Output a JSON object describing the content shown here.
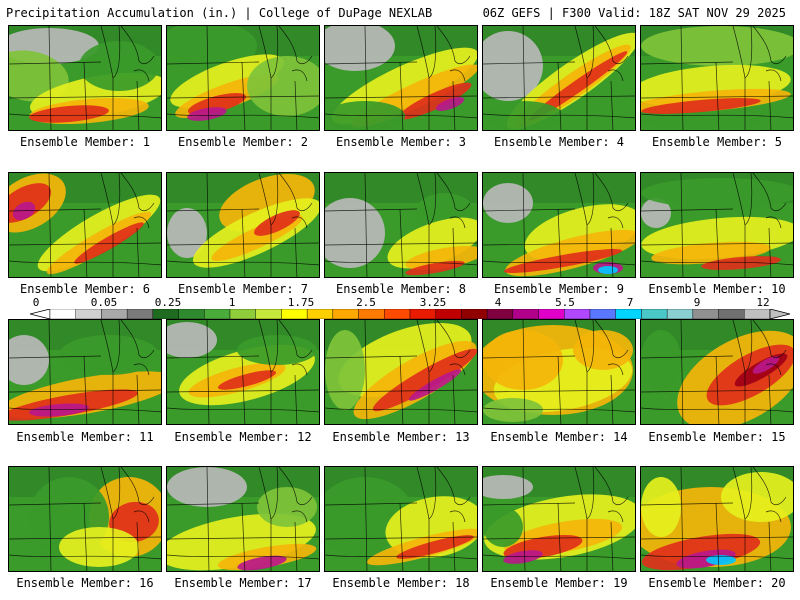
{
  "header": {
    "title": "Precipitation Accumulation (in.) | College of DuPage NEXLAB",
    "valid": "06Z GEFS | F300 Valid: 18Z SAT NOV 29 2025"
  },
  "legend": {
    "labels": [
      "0",
      "0.05",
      "0.25",
      "1",
      "1.75",
      "2.5",
      "3.25",
      "4",
      "5.5",
      "7",
      "9",
      "12"
    ],
    "colors": [
      "#ffffff",
      "#d0d0d0",
      "#a8a8a8",
      "#7a7a7a",
      "#1f6b1f",
      "#2f8a2f",
      "#4aab3a",
      "#8fcd3a",
      "#c6e83a",
      "#ffff00",
      "#ffd000",
      "#ffa800",
      "#ff7a00",
      "#ff4a00",
      "#e81a00",
      "#c00000",
      "#900000",
      "#800040",
      "#b0008a",
      "#e000c8",
      "#b048ff",
      "#5a78ff",
      "#00d4ff",
      "#4ac8c8",
      "#8ad0d0",
      "#909090",
      "#707070",
      "#c0c0c0"
    ]
  },
  "members": [
    {
      "label": "Ensemble Member: 1"
    },
    {
      "label": "Ensemble Member: 2"
    },
    {
      "label": "Ensemble Member: 3"
    },
    {
      "label": "Ensemble Member: 4"
    },
    {
      "label": "Ensemble Member: 5"
    },
    {
      "label": "Ensemble Member: 6"
    },
    {
      "label": "Ensemble Member: 7"
    },
    {
      "label": "Ensemble Member: 8"
    },
    {
      "label": "Ensemble Member: 9"
    },
    {
      "label": "Ensemble Member: 10"
    },
    {
      "label": "Ensemble Member: 11"
    },
    {
      "label": "Ensemble Member: 12"
    },
    {
      "label": "Ensemble Member: 13"
    },
    {
      "label": "Ensemble Member: 14"
    },
    {
      "label": "Ensemble Member: 15"
    },
    {
      "label": "Ensemble Member: 16"
    },
    {
      "label": "Ensemble Member: 17"
    },
    {
      "label": "Ensemble Member: 18"
    },
    {
      "label": "Ensemble Member: 19"
    },
    {
      "label": "Ensemble Member: 20"
    }
  ]
}
